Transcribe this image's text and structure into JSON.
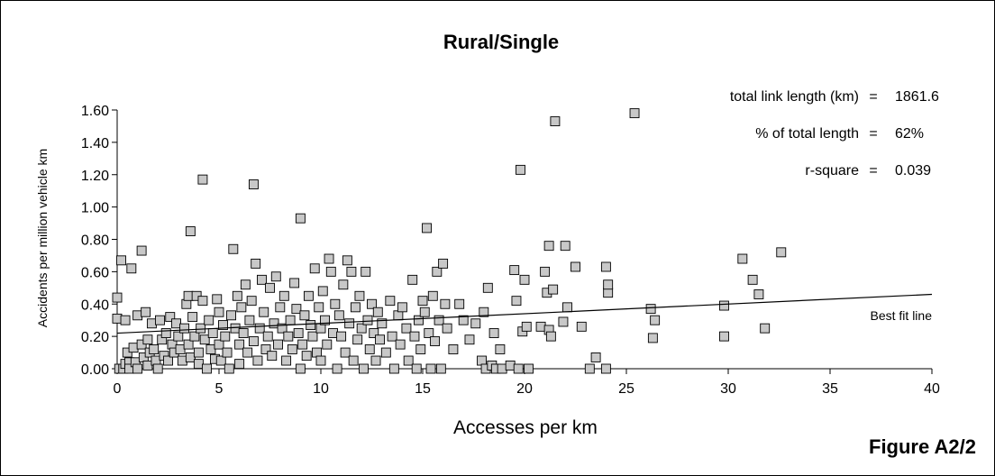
{
  "chart_data": {
    "type": "scatter",
    "title": "Rural/Single",
    "xlabel": "Accesses per km",
    "ylabel": "Accidents per million vehicle km",
    "xlim": [
      0,
      40
    ],
    "ylim": [
      0,
      1.6
    ],
    "xticks": [
      0,
      5,
      10,
      15,
      20,
      25,
      30,
      35,
      40
    ],
    "yticks": [
      "0.00",
      "0.20",
      "0.40",
      "0.60",
      "0.80",
      "1.00",
      "1.20",
      "1.40",
      "1.60"
    ],
    "grid": false,
    "marker_color": "#c8c8c8",
    "fit_line": {
      "label": "Best fit line",
      "x": [
        0,
        40
      ],
      "y": [
        0.22,
        0.46
      ]
    },
    "stats": [
      {
        "label": "total link length (km)",
        "eq": "=",
        "value": "1861.6"
      },
      {
        "label": "% of total length",
        "eq": "=",
        "value": "62%"
      },
      {
        "label": "r-square",
        "eq": "=",
        "value": "0.039"
      }
    ],
    "figure_label": "Figure A2/2",
    "points": [
      [
        0.0,
        0.44
      ],
      [
        0.0,
        0.31
      ],
      [
        0.1,
        0.0
      ],
      [
        0.2,
        0.67
      ],
      [
        0.3,
        0.0
      ],
      [
        0.4,
        0.3
      ],
      [
        0.4,
        0.03
      ],
      [
        0.5,
        0.1
      ],
      [
        0.6,
        0.04
      ],
      [
        0.6,
        0.0
      ],
      [
        0.7,
        0.62
      ],
      [
        0.8,
        0.13
      ],
      [
        0.9,
        0.04
      ],
      [
        1.0,
        0.33
      ],
      [
        1.0,
        0.0
      ],
      [
        1.2,
        0.73
      ],
      [
        1.2,
        0.15
      ],
      [
        1.3,
        0.07
      ],
      [
        1.4,
        0.35
      ],
      [
        1.5,
        0.18
      ],
      [
        1.5,
        0.02
      ],
      [
        1.6,
        0.1
      ],
      [
        1.7,
        0.28
      ],
      [
        1.8,
        0.12
      ],
      [
        1.9,
        0.05
      ],
      [
        2.0,
        0.0
      ],
      [
        2.1,
        0.3
      ],
      [
        2.2,
        0.18
      ],
      [
        2.3,
        0.08
      ],
      [
        2.4,
        0.22
      ],
      [
        2.5,
        0.05
      ],
      [
        2.6,
        0.32
      ],
      [
        2.7,
        0.15
      ],
      [
        2.8,
        0.1
      ],
      [
        2.9,
        0.28
      ],
      [
        3.0,
        0.2
      ],
      [
        3.1,
        0.12
      ],
      [
        3.2,
        0.05
      ],
      [
        3.3,
        0.25
      ],
      [
        3.4,
        0.4
      ],
      [
        3.5,
        0.45
      ],
      [
        3.5,
        0.15
      ],
      [
        3.6,
        0.85
      ],
      [
        3.6,
        0.07
      ],
      [
        3.7,
        0.32
      ],
      [
        3.8,
        0.2
      ],
      [
        3.9,
        0.45
      ],
      [
        4.0,
        0.1
      ],
      [
        4.0,
        0.03
      ],
      [
        4.1,
        0.25
      ],
      [
        4.2,
        1.17
      ],
      [
        4.2,
        0.42
      ],
      [
        4.3,
        0.18
      ],
      [
        4.4,
        0.0
      ],
      [
        4.5,
        0.3
      ],
      [
        4.6,
        0.12
      ],
      [
        4.7,
        0.22
      ],
      [
        4.8,
        0.06
      ],
      [
        4.9,
        0.43
      ],
      [
        5.0,
        0.35
      ],
      [
        5.0,
        0.15
      ],
      [
        5.1,
        0.05
      ],
      [
        5.2,
        0.27
      ],
      [
        5.3,
        0.2
      ],
      [
        5.4,
        0.1
      ],
      [
        5.5,
        0.0
      ],
      [
        5.6,
        0.33
      ],
      [
        5.7,
        0.74
      ],
      [
        5.8,
        0.25
      ],
      [
        5.9,
        0.45
      ],
      [
        6.0,
        0.15
      ],
      [
        6.0,
        0.03
      ],
      [
        6.1,
        0.38
      ],
      [
        6.2,
        0.22
      ],
      [
        6.3,
        0.52
      ],
      [
        6.4,
        0.1
      ],
      [
        6.5,
        0.3
      ],
      [
        6.6,
        0.42
      ],
      [
        6.7,
        1.14
      ],
      [
        6.7,
        0.17
      ],
      [
        6.8,
        0.65
      ],
      [
        6.9,
        0.05
      ],
      [
        7.0,
        0.25
      ],
      [
        7.1,
        0.55
      ],
      [
        7.2,
        0.35
      ],
      [
        7.3,
        0.12
      ],
      [
        7.4,
        0.2
      ],
      [
        7.5,
        0.5
      ],
      [
        7.6,
        0.08
      ],
      [
        7.7,
        0.28
      ],
      [
        7.8,
        0.57
      ],
      [
        7.9,
        0.15
      ],
      [
        8.0,
        0.38
      ],
      [
        8.1,
        0.25
      ],
      [
        8.2,
        0.45
      ],
      [
        8.3,
        0.05
      ],
      [
        8.4,
        0.2
      ],
      [
        8.5,
        0.3
      ],
      [
        8.6,
        0.12
      ],
      [
        8.7,
        0.53
      ],
      [
        8.8,
        0.37
      ],
      [
        8.9,
        0.22
      ],
      [
        9.0,
        0.93
      ],
      [
        9.0,
        0.0
      ],
      [
        9.1,
        0.15
      ],
      [
        9.2,
        0.33
      ],
      [
        9.3,
        0.08
      ],
      [
        9.4,
        0.45
      ],
      [
        9.5,
        0.27
      ],
      [
        9.6,
        0.2
      ],
      [
        9.7,
        0.62
      ],
      [
        9.8,
        0.1
      ],
      [
        9.9,
        0.38
      ],
      [
        10.0,
        0.25
      ],
      [
        10.0,
        0.05
      ],
      [
        10.1,
        0.48
      ],
      [
        10.2,
        0.3
      ],
      [
        10.3,
        0.15
      ],
      [
        10.4,
        0.68
      ],
      [
        10.5,
        0.6
      ],
      [
        10.6,
        0.22
      ],
      [
        10.7,
        0.4
      ],
      [
        10.8,
        0.0
      ],
      [
        10.9,
        0.33
      ],
      [
        11.0,
        0.2
      ],
      [
        11.1,
        0.52
      ],
      [
        11.2,
        0.1
      ],
      [
        11.3,
        0.67
      ],
      [
        11.4,
        0.28
      ],
      [
        11.5,
        0.6
      ],
      [
        11.6,
        0.05
      ],
      [
        11.7,
        0.38
      ],
      [
        11.8,
        0.18
      ],
      [
        11.9,
        0.45
      ],
      [
        12.0,
        0.25
      ],
      [
        12.1,
        0.0
      ],
      [
        12.2,
        0.6
      ],
      [
        12.3,
        0.3
      ],
      [
        12.4,
        0.12
      ],
      [
        12.5,
        0.4
      ],
      [
        12.6,
        0.22
      ],
      [
        12.7,
        0.05
      ],
      [
        12.8,
        0.35
      ],
      [
        12.9,
        0.18
      ],
      [
        13.0,
        0.28
      ],
      [
        13.2,
        0.1
      ],
      [
        13.4,
        0.42
      ],
      [
        13.5,
        0.2
      ],
      [
        13.6,
        0.0
      ],
      [
        13.8,
        0.33
      ],
      [
        13.9,
        0.15
      ],
      [
        14.0,
        0.38
      ],
      [
        14.2,
        0.25
      ],
      [
        14.3,
        0.05
      ],
      [
        14.5,
        0.55
      ],
      [
        14.6,
        0.2
      ],
      [
        14.7,
        0.0
      ],
      [
        14.8,
        0.3
      ],
      [
        14.9,
        0.12
      ],
      [
        15.0,
        0.42
      ],
      [
        15.1,
        0.35
      ],
      [
        15.2,
        0.87
      ],
      [
        15.3,
        0.22
      ],
      [
        15.4,
        0.0
      ],
      [
        15.5,
        0.45
      ],
      [
        15.6,
        0.17
      ],
      [
        15.7,
        0.6
      ],
      [
        15.8,
        0.3
      ],
      [
        15.9,
        0.0
      ],
      [
        16.0,
        0.65
      ],
      [
        16.1,
        0.4
      ],
      [
        16.2,
        0.25
      ],
      [
        16.5,
        0.12
      ],
      [
        16.8,
        0.4
      ],
      [
        17.0,
        0.3
      ],
      [
        17.3,
        0.18
      ],
      [
        17.6,
        0.28
      ],
      [
        17.9,
        0.05
      ],
      [
        18.0,
        0.35
      ],
      [
        18.1,
        0.0
      ],
      [
        18.2,
        0.5
      ],
      [
        18.4,
        0.02
      ],
      [
        18.5,
        0.22
      ],
      [
        18.6,
        0.0
      ],
      [
        18.8,
        0.12
      ],
      [
        18.9,
        0.0
      ],
      [
        19.3,
        0.02
      ],
      [
        19.5,
        0.61
      ],
      [
        19.6,
        0.42
      ],
      [
        19.7,
        0.0
      ],
      [
        19.8,
        1.23
      ],
      [
        19.9,
        0.23
      ],
      [
        20.0,
        0.55
      ],
      [
        20.1,
        0.26
      ],
      [
        20.2,
        0.0
      ],
      [
        20.8,
        0.26
      ],
      [
        21.0,
        0.6
      ],
      [
        21.1,
        0.47
      ],
      [
        21.2,
        0.76
      ],
      [
        21.2,
        0.24
      ],
      [
        21.3,
        0.2
      ],
      [
        21.4,
        0.49
      ],
      [
        21.5,
        1.53
      ],
      [
        21.9,
        0.29
      ],
      [
        22.0,
        0.76
      ],
      [
        22.1,
        0.38
      ],
      [
        22.5,
        0.63
      ],
      [
        22.8,
        0.26
      ],
      [
        23.2,
        0.0
      ],
      [
        23.5,
        0.07
      ],
      [
        24.0,
        0.63
      ],
      [
        24.0,
        0.0
      ],
      [
        24.1,
        0.47
      ],
      [
        24.1,
        0.52
      ],
      [
        25.4,
        1.58
      ],
      [
        26.2,
        0.37
      ],
      [
        26.3,
        0.19
      ],
      [
        26.4,
        0.3
      ],
      [
        29.8,
        0.39
      ],
      [
        29.8,
        0.2
      ],
      [
        30.7,
        0.68
      ],
      [
        31.2,
        0.55
      ],
      [
        31.5,
        0.46
      ],
      [
        31.8,
        0.25
      ],
      [
        32.6,
        0.72
      ]
    ]
  }
}
